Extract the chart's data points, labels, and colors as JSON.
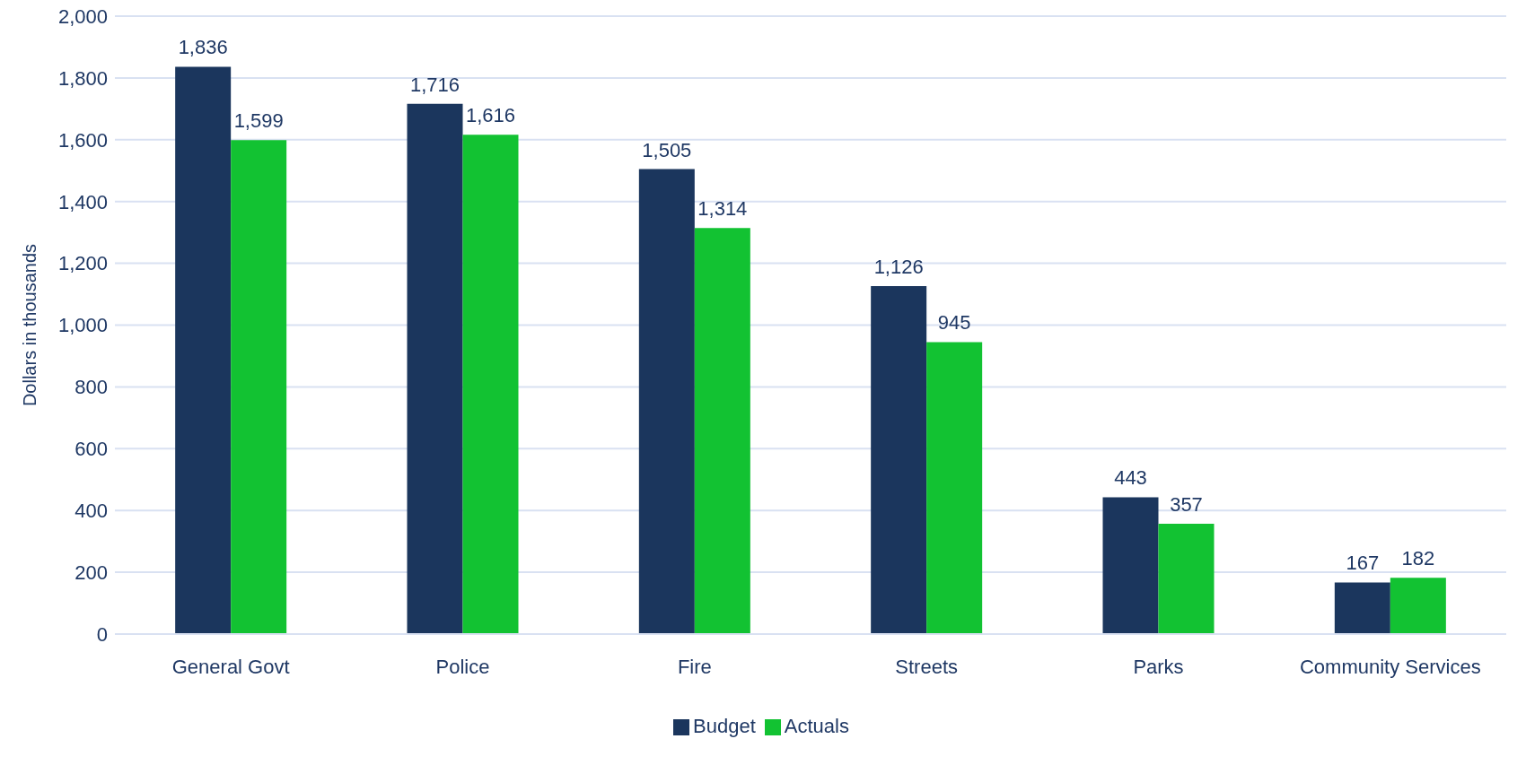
{
  "chart_data": {
    "type": "bar",
    "ylabel": "Dollars in thousands",
    "categories": [
      "General Govt",
      "Police",
      "Fire",
      "Streets",
      "Parks",
      "Community Services"
    ],
    "series": [
      {
        "name": "Budget",
        "color": "#1b365d",
        "values": [
          1836,
          1716,
          1505,
          1126,
          443,
          167
        ],
        "value_labels": [
          "1,836",
          "1,716",
          "1,505",
          "1,126",
          "443",
          "167"
        ]
      },
      {
        "name": "Actuals",
        "color": "#12c232",
        "values": [
          1599,
          1616,
          1314,
          945,
          357,
          182
        ],
        "value_labels": [
          "1,599",
          "1,616",
          "1,314",
          "945",
          "357",
          "182"
        ]
      }
    ],
    "ylim": [
      0,
      2000
    ],
    "yticks": [
      0,
      {
        "value": 200,
        "label": "200"
      },
      {
        "value": 400,
        "label": "400"
      },
      {
        "value": 600,
        "label": "600"
      },
      {
        "value": 800,
        "label": "800"
      },
      {
        "value": 1000,
        "label": "1,000"
      },
      {
        "value": 1200,
        "label": "1,200"
      },
      {
        "value": 1400,
        "label": "1,400"
      },
      {
        "value": 1600,
        "label": "1,600"
      },
      {
        "value": 1800,
        "label": "1,800"
      },
      {
        "value": 2000,
        "label": "2,000"
      }
    ],
    "grid": "y",
    "legend": "bottom"
  }
}
